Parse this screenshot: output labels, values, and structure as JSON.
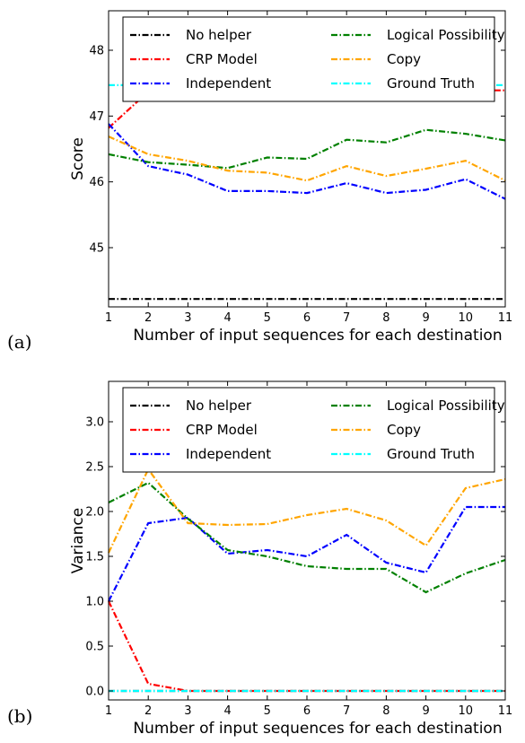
{
  "panel_labels": [
    "(a)",
    "(b)"
  ],
  "chart_data": [
    {
      "type": "line",
      "panel": "(a)",
      "xlabel": "Number of input sequences for each destination",
      "ylabel": "Score",
      "xlim": [
        1,
        11
      ],
      "ylim": [
        44.1,
        48.6
      ],
      "xticks": [
        1,
        2,
        3,
        4,
        5,
        6,
        7,
        8,
        9,
        10,
        11
      ],
      "yticks": [
        45,
        46,
        47,
        48
      ],
      "legend": "top",
      "grid": false,
      "x": [
        1,
        2,
        3,
        4,
        5,
        6,
        7,
        8,
        9,
        10,
        11
      ],
      "series": [
        {
          "name": "No helper",
          "color": "#000000",
          "values": [
            44.22,
            44.22,
            44.22,
            44.22,
            44.22,
            44.22,
            44.22,
            44.22,
            44.22,
            44.22,
            44.22
          ]
        },
        {
          "name": "CRP Model",
          "color": "#ff0000",
          "values": [
            46.82,
            47.37,
            47.39,
            47.39,
            47.39,
            47.39,
            47.39,
            47.39,
            47.39,
            47.39,
            47.39
          ]
        },
        {
          "name": "Independent",
          "color": "#0000ff",
          "values": [
            46.88,
            46.24,
            46.11,
            45.86,
            45.86,
            45.83,
            45.98,
            45.83,
            45.88,
            46.04,
            45.74
          ]
        },
        {
          "name": "Logical Possibility",
          "color": "#008000",
          "values": [
            46.42,
            46.3,
            46.26,
            46.21,
            46.37,
            46.35,
            46.64,
            46.6,
            46.79,
            46.73,
            46.63
          ]
        },
        {
          "name": "Copy",
          "color": "#ffa500",
          "values": [
            46.69,
            46.42,
            46.32,
            46.17,
            46.14,
            46.02,
            46.24,
            46.09,
            46.2,
            46.32,
            46.02
          ]
        },
        {
          "name": "Ground Truth",
          "color": "#00ffff",
          "values": [
            47.47,
            47.47,
            47.47,
            47.47,
            47.47,
            47.47,
            47.47,
            47.47,
            47.47,
            47.47,
            47.47
          ]
        }
      ]
    },
    {
      "type": "line",
      "panel": "(b)",
      "xlabel": "Number of input sequences for each destination",
      "ylabel": "Variance",
      "xlim": [
        1,
        11
      ],
      "ylim": [
        -0.1,
        3.45
      ],
      "xticks": [
        1,
        2,
        3,
        4,
        5,
        6,
        7,
        8,
        9,
        10,
        11
      ],
      "yticks": [
        0.0,
        0.5,
        1.0,
        1.5,
        2.0,
        2.5,
        3.0
      ],
      "legend": "top",
      "grid": false,
      "x": [
        1,
        2,
        3,
        4,
        5,
        6,
        7,
        8,
        9,
        10,
        11
      ],
      "series": [
        {
          "name": "No helper",
          "color": "#000000",
          "values": [
            0,
            0,
            0,
            0,
            0,
            0,
            0,
            0,
            0,
            0,
            0
          ]
        },
        {
          "name": "CRP Model",
          "color": "#ff0000",
          "values": [
            1.0,
            0.08,
            0.0,
            0.0,
            0.0,
            0.0,
            0.0,
            0.0,
            0.0,
            0.0,
            0.0
          ]
        },
        {
          "name": "Independent",
          "color": "#0000ff",
          "values": [
            1.0,
            1.87,
            1.93,
            1.53,
            1.57,
            1.5,
            1.74,
            1.43,
            1.32,
            2.05,
            2.05
          ]
        },
        {
          "name": "Logical Possibility",
          "color": "#008000",
          "values": [
            2.1,
            2.32,
            1.92,
            1.57,
            1.5,
            1.39,
            1.36,
            1.36,
            1.1,
            1.31,
            1.46
          ]
        },
        {
          "name": "Copy",
          "color": "#ffa500",
          "values": [
            1.54,
            2.47,
            1.87,
            1.85,
            1.86,
            1.96,
            2.03,
            1.9,
            1.62,
            2.26,
            2.36
          ]
        },
        {
          "name": "Ground Truth",
          "color": "#00ffff",
          "values": [
            0.0,
            0.0,
            0.0,
            0.0,
            0.0,
            0.0,
            0.0,
            0.0,
            0.0,
            0.0,
            0.0
          ]
        }
      ]
    }
  ]
}
